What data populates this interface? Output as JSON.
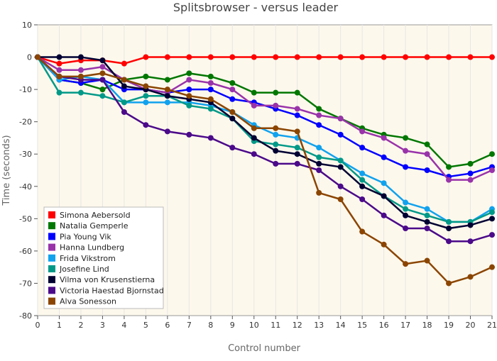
{
  "chart_data": {
    "type": "line",
    "title": "Splitsbrowser - versus leader",
    "xlabel": "Control number",
    "ylabel": "Time (seconds)",
    "xlim": [
      0,
      21
    ],
    "ylim": [
      -80,
      10
    ],
    "x_ticks": [
      0,
      1,
      2,
      3,
      4,
      5,
      6,
      7,
      8,
      9,
      10,
      11,
      12,
      13,
      14,
      15,
      16,
      17,
      18,
      19,
      20,
      21
    ],
    "x_tick_labels": [
      "0",
      "1",
      "2",
      "3",
      "4",
      "5",
      "6",
      "7",
      "8",
      "9",
      "10",
      "11",
      "12",
      "13",
      "14",
      "15",
      "16",
      "17",
      "18",
      "19",
      "20",
      "21"
    ],
    "y_ticks": [
      10,
      0,
      -10,
      -20,
      -30,
      -40,
      -50,
      -60,
      -70,
      -80
    ],
    "y_tick_labels": [
      "10",
      "0",
      "-10",
      "-20",
      "-30",
      "-40",
      "-50",
      "-60",
      "-70",
      "-80"
    ],
    "x": [
      0,
      1,
      2,
      3,
      4,
      5,
      6,
      7,
      8,
      9,
      10,
      11,
      12,
      13,
      14,
      15,
      16,
      17,
      18,
      19,
      20,
      21
    ],
    "legend_position": "bottom-left",
    "grid": "vertical",
    "background_color": "#fdf8ec",
    "series": [
      {
        "name": "Simona Aebersold",
        "color": "#ff0000",
        "values": [
          0,
          -2,
          -1,
          -1,
          -2,
          0,
          0,
          0,
          0,
          0,
          0,
          0,
          0,
          0,
          0,
          0,
          0,
          0,
          0,
          0,
          0,
          0
        ]
      },
      {
        "name": "Natalia Gemperle",
        "color": "#007700",
        "values": [
          0,
          -7,
          -8,
          -10,
          -7,
          -6,
          -7,
          -5,
          -6,
          -8,
          -11,
          -11,
          -11,
          -16,
          -19,
          -22,
          -24,
          -25,
          -27,
          -34,
          -33,
          -30
        ]
      },
      {
        "name": "Pia Young Vik",
        "color": "#0000ff",
        "values": [
          0,
          -7,
          -8,
          -7,
          -10,
          -10,
          -11,
          -10,
          -10,
          -13,
          -14,
          -16,
          -18,
          -21,
          -24,
          -28,
          -31,
          -34,
          -35,
          -37,
          -36,
          -34
        ]
      },
      {
        "name": "Hanna Lundberg",
        "color": "#9933aa",
        "values": [
          0,
          -4,
          -4,
          -3,
          -7,
          -10,
          -11,
          -7,
          -8,
          -10,
          -15,
          -15,
          -16,
          -18,
          -19,
          -23,
          -25,
          -29,
          -30,
          -38,
          -38,
          -35
        ]
      },
      {
        "name": "Frida Vikstrom",
        "color": "#11a2ee",
        "values": [
          0,
          -7,
          -6,
          -7,
          -14,
          -14,
          -14,
          -14,
          -15,
          -17,
          -21,
          -24,
          -25,
          -28,
          -32,
          -36,
          -39,
          -45,
          -47,
          -51,
          -51,
          -47
        ]
      },
      {
        "name": "Josefine Lind",
        "color": "#009988",
        "values": [
          0,
          -11,
          -11,
          -12,
          -14,
          -12,
          -12,
          -15,
          -16,
          -19,
          -26,
          -27,
          -28,
          -31,
          -32,
          -38,
          -43,
          -47,
          -49,
          -51,
          -51,
          -48
        ]
      },
      {
        "name": "Vilma von Krusenstierna",
        "color": "#000033",
        "values": [
          0,
          0,
          0,
          -1,
          -9,
          -10,
          -12,
          -13,
          -14,
          -19,
          -25,
          -29,
          -30,
          -33,
          -34,
          -40,
          -43,
          -49,
          -51,
          -53,
          -52,
          -50
        ]
      },
      {
        "name": "Victoria Haestad Bjornstad",
        "color": "#4b0a8a",
        "values": [
          0,
          -6,
          -7,
          -7,
          -17,
          -21,
          -23,
          -24,
          -25,
          -28,
          -30,
          -33,
          -33,
          -35,
          -40,
          -44,
          -49,
          -53,
          -53,
          -57,
          -57,
          -55
        ]
      },
      {
        "name": "Alva Sonesson",
        "color": "#8b4500",
        "values": [
          0,
          -6,
          -6,
          -5,
          -7,
          -9,
          -10,
          -12,
          -13,
          -17,
          -22,
          -22,
          -23,
          -42,
          -44,
          -54,
          -58,
          -64,
          -63,
          -70,
          -68,
          -65
        ]
      }
    ]
  }
}
